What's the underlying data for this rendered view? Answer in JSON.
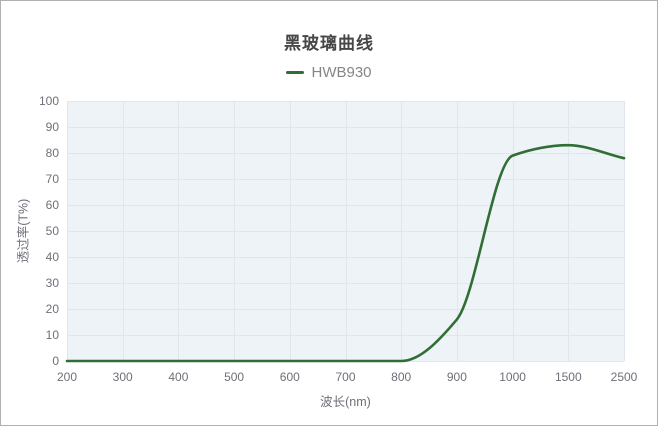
{
  "window": {
    "background": "#ffffff",
    "border_color": "#b0b0b0"
  },
  "chart_data": {
    "type": "line",
    "title": "黑玻璃曲线",
    "categories": [
      "200",
      "300",
      "400",
      "500",
      "600",
      "700",
      "800",
      "900",
      "1000",
      "1500",
      "2500"
    ],
    "series": [
      {
        "name": "HWB930",
        "color": "#306e35",
        "smooth": true,
        "values": [
          0,
          0,
          0,
          0,
          0,
          0,
          0,
          16,
          79,
          83,
          78
        ]
      }
    ],
    "xlabel": "波长(nm)",
    "ylabel": "透过率(T%)",
    "ylim": [
      0,
      100
    ],
    "yticks": [
      0,
      10,
      20,
      30,
      40,
      50,
      60,
      70,
      80,
      90,
      100
    ],
    "grid": "on",
    "legend_position": "top-center",
    "plot_background": "#eef3f8",
    "gridline_color": "#e0e6ed",
    "axis_label_color": "#6e7079",
    "title_color": "#464646",
    "legend_text_color": "#858585"
  }
}
